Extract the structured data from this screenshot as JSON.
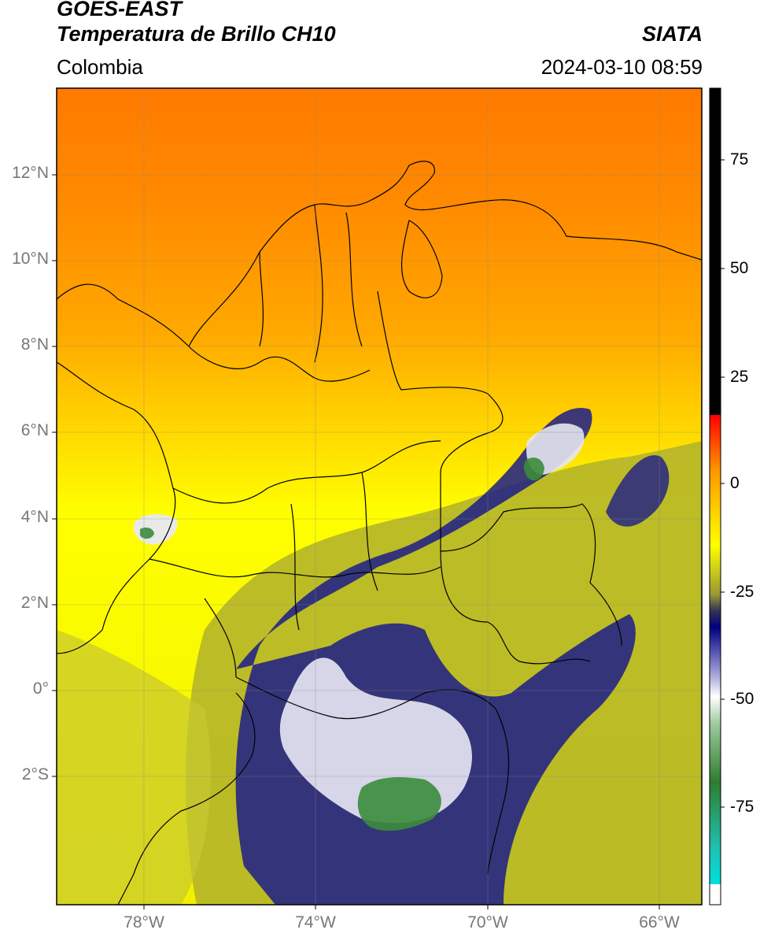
{
  "header": {
    "satellite": "GOES-EAST",
    "product": "Temperatura de Brillo CH10",
    "organization": "SIATA",
    "region": "Colombia",
    "timestamp": "2024-03-10 08:59"
  },
  "map": {
    "lon_range": [
      -80,
      -65
    ],
    "lat_range": [
      -5,
      14
    ],
    "lat_ticks": [
      {
        "value": 12,
        "label": "12°N"
      },
      {
        "value": 10,
        "label": "10°N"
      },
      {
        "value": 8,
        "label": "8°N"
      },
      {
        "value": 6,
        "label": "6°N"
      },
      {
        "value": 4,
        "label": "4°N"
      },
      {
        "value": 2,
        "label": "2°N"
      },
      {
        "value": 0,
        "label": "0°"
      },
      {
        "value": -2,
        "label": "2°S"
      }
    ],
    "lon_ticks": [
      {
        "value": -78,
        "label": "78°W"
      },
      {
        "value": -74,
        "label": "74°W"
      },
      {
        "value": -70,
        "label": "70°W"
      },
      {
        "value": -66,
        "label": "66°W"
      }
    ],
    "gridlines": true
  },
  "colorbar": {
    "range": [
      -97,
      90
    ],
    "ticks": [
      {
        "value": 75,
        "label": "75"
      },
      {
        "value": 50,
        "label": "50"
      },
      {
        "value": 25,
        "label": "25"
      },
      {
        "value": 0,
        "label": "0"
      },
      {
        "value": -25,
        "label": "-25"
      },
      {
        "value": -50,
        "label": "-50"
      },
      {
        "value": -75,
        "label": "-75"
      }
    ]
  },
  "colors": {
    "warm_orange": "#ff7f00",
    "orange": "#ffa000",
    "yellow": "#ffff00",
    "olive": "#aaaa22",
    "navy": "#1a1a8c",
    "white": "#ffffff",
    "green": "#2e8b2e",
    "cyan": "#00dddd",
    "red": "#ff0000",
    "black": "#000000"
  }
}
